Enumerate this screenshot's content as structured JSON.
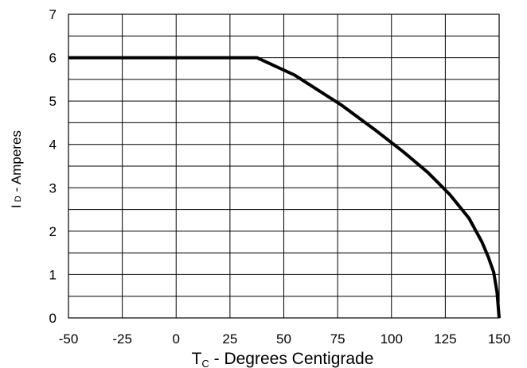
{
  "chart_data": {
    "type": "line",
    "title": "",
    "xlabel": {
      "prefix": "T",
      "subscript": "C",
      "suffix": " - Degrees Centigrade"
    },
    "ylabel": {
      "prefix": "I",
      "subscript": "D",
      "suffix": " - Amperes"
    },
    "xlim": [
      -50,
      150
    ],
    "ylim": [
      0,
      7
    ],
    "x_ticks": [
      -50,
      -25,
      0,
      25,
      50,
      75,
      100,
      125,
      150
    ],
    "x_tick_labels": [
      "-50",
      "-25",
      "0",
      "25",
      "50",
      "75",
      "100",
      "125",
      "150"
    ],
    "y_ticks": [
      0,
      1,
      2,
      3,
      4,
      5,
      6,
      7
    ],
    "y_tick_labels": [
      "0",
      "1",
      "2",
      "3",
      "4",
      "5",
      "6",
      "7"
    ],
    "x_grid": [
      -50,
      -25,
      0,
      25,
      50,
      75,
      100,
      125,
      150
    ],
    "y_grid": [
      0,
      0.5,
      1,
      1.5,
      2,
      2.5,
      3,
      3.5,
      4,
      4.5,
      5,
      5.5,
      6,
      6.5,
      7
    ],
    "grid": true,
    "legend": "none",
    "series": [
      {
        "color": "#000000",
        "x": [
          -50,
          37.5,
          55,
          77,
          92,
          105,
          117,
          127,
          136,
          142,
          145,
          147.5,
          149,
          150
        ],
        "y": [
          6.0,
          6.0,
          5.6,
          4.9,
          4.35,
          3.85,
          3.35,
          2.85,
          2.3,
          1.75,
          1.4,
          1.05,
          0.6,
          0.0
        ]
      }
    ]
  }
}
